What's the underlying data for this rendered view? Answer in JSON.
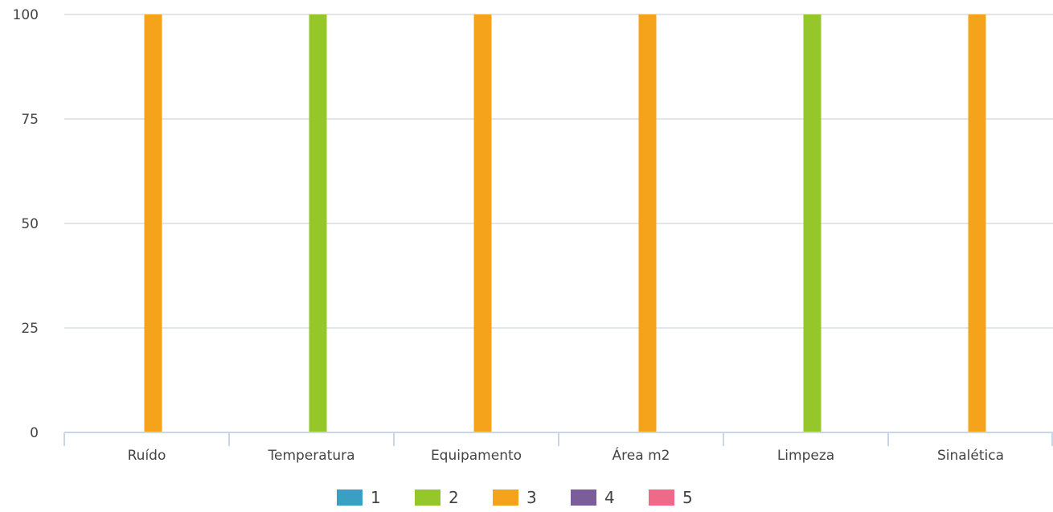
{
  "chart_data": {
    "type": "bar",
    "categories": [
      "Ruído",
      "Temperatura",
      "Equipamento",
      "Área m2",
      "Limpeza",
      "Sinalética"
    ],
    "series": [
      {
        "name": "1",
        "color": "#3aa0c3",
        "values": [
          0,
          0,
          0,
          0,
          0,
          0
        ]
      },
      {
        "name": "2",
        "color": "#95c62a",
        "values": [
          0,
          100,
          0,
          0,
          100,
          0
        ]
      },
      {
        "name": "3",
        "color": "#f5a31b",
        "values": [
          100,
          0,
          100,
          100,
          0,
          100
        ]
      },
      {
        "name": "4",
        "color": "#7b5e99",
        "values": [
          0,
          0,
          0,
          0,
          0,
          0
        ]
      },
      {
        "name": "5",
        "color": "#ef6a88",
        "values": [
          0,
          0,
          0,
          0,
          0,
          0
        ]
      }
    ],
    "yticks": [
      0,
      25,
      50,
      75,
      100
    ],
    "ylim": [
      0,
      100
    ],
    "grid": true,
    "legend_position": "bottom",
    "title": "",
    "xlabel": "",
    "ylabel": ""
  }
}
